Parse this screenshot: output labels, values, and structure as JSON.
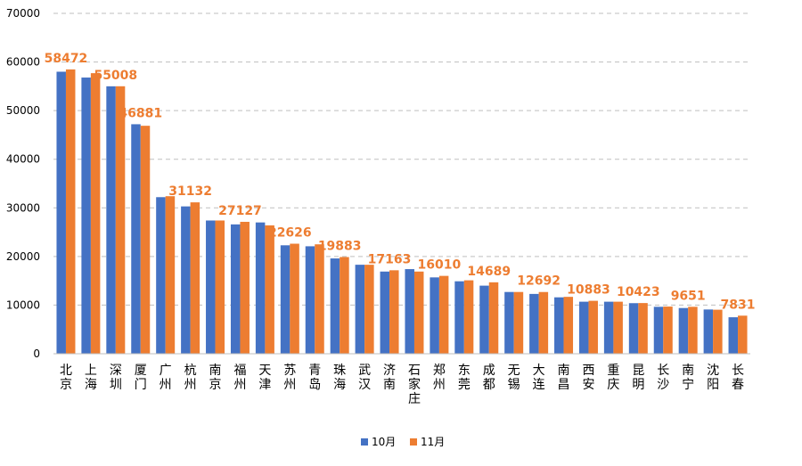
{
  "chart_data": {
    "type": "bar",
    "title": "",
    "xlabel": "",
    "ylabel": "",
    "ylim": [
      0,
      70000
    ],
    "yticks": [
      0,
      10000,
      20000,
      30000,
      40000,
      50000,
      60000,
      70000
    ],
    "grid": true,
    "legend_position": "bottom",
    "categories": [
      "北京",
      "上海",
      "深圳",
      "厦门",
      "广州",
      "杭州",
      "南京",
      "福州",
      "天津",
      "苏州",
      "青岛",
      "珠海",
      "武汉",
      "济南",
      "石家庄",
      "郑州",
      "东莞",
      "成都",
      "无锡",
      "大连",
      "南昌",
      "西安",
      "重庆",
      "昆明",
      "长沙",
      "南宁",
      "沈阳",
      "长春"
    ],
    "series": [
      {
        "name": "10月",
        "color": "#4472C4",
        "values": [
          58000,
          56800,
          55000,
          47200,
          32200,
          30300,
          27400,
          26600,
          27000,
          22300,
          22100,
          19600,
          18300,
          16900,
          17400,
          15700,
          14900,
          14000,
          12700,
          12300,
          11600,
          10700,
          10700,
          10400,
          9650,
          9400,
          9100,
          7500
        ]
      },
      {
        "name": "11月",
        "color": "#ED7D31",
        "values": [
          58472,
          57700,
          55008,
          46881,
          32400,
          31132,
          27400,
          27127,
          26400,
          22626,
          22500,
          19883,
          18300,
          17163,
          16900,
          16010,
          15100,
          14689,
          12700,
          12692,
          11700,
          10883,
          10700,
          10423,
          9700,
          9651,
          9050,
          7831
        ],
        "labels": [
          "58472",
          "",
          "55008",
          "46881",
          "",
          "31132",
          "",
          "27127",
          "",
          "22626",
          "",
          "19883",
          "",
          "17163",
          "",
          "16010",
          "",
          "14689",
          "",
          "12692",
          "",
          "10883",
          "",
          "10423",
          "",
          "9651",
          "",
          "7831"
        ]
      }
    ]
  }
}
